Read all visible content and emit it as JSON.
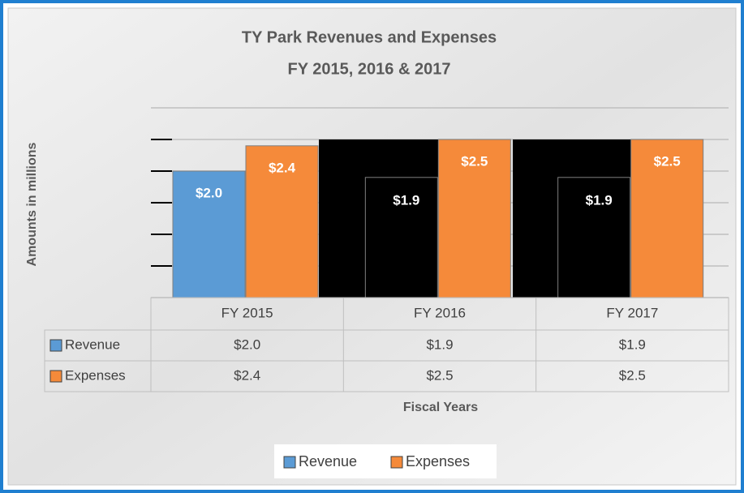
{
  "chart_data": {
    "type": "bar",
    "title": "TY Park Revenues and Expenses",
    "subtitle": "FY 2015, 2016 & 2017",
    "ylabel": "Amounts in millions",
    "xlabel": "Fiscal Years",
    "categories": [
      "FY 2015",
      "FY 2016",
      "FY 2017"
    ],
    "series": [
      {
        "name": "Revenue",
        "color": "#5b9bd5",
        "colors": [
          "#5b9bd5",
          "#000000",
          "#000000"
        ],
        "values": [
          2.0,
          1.9,
          1.9
        ],
        "value_labels": [
          "$2.0",
          "$1.9",
          "$1.9"
        ]
      },
      {
        "name": "Expenses",
        "color": "#f58a3a",
        "colors": [
          "#f58a3a",
          "#f58a3a",
          "#f58a3a"
        ],
        "values": [
          2.4,
          2.5,
          2.5
        ],
        "value_labels": [
          "$2.4",
          "$2.5",
          "$2.5"
        ]
      }
    ],
    "ylim": [
      0,
      3
    ],
    "yticks": [
      0,
      0.5,
      1,
      1.5,
      2,
      2.5,
      3
    ],
    "grid": true,
    "legend": "bottom"
  }
}
